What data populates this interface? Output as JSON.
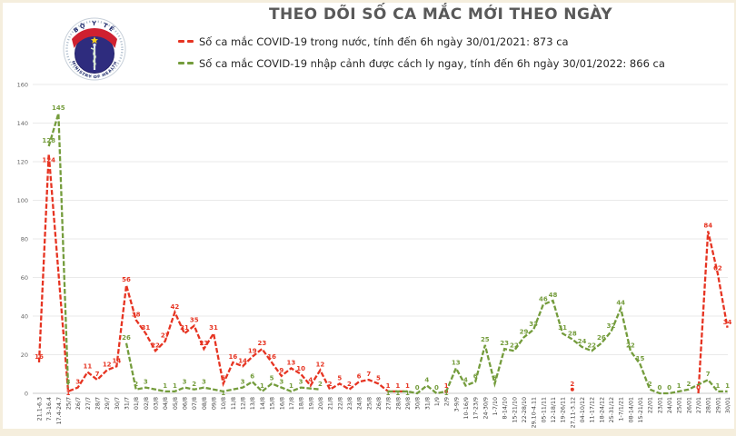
{
  "header": {
    "title": "THEO DÕI SỐ CA MẮC MỚI THEO NGÀY"
  },
  "logo": {
    "top_text": "BỘ Y TẾ",
    "bottom_text": "MINISTRY OF HEALTH",
    "emblem": "rod-of-asclepius",
    "colors": {
      "ring": "#97a9bd",
      "band": "#cf2030",
      "star": "#f7d01a",
      "disc": "#2e2c7e",
      "text": "#1f2a6b"
    }
  },
  "legend": {
    "items": [
      {
        "label": "Số ca mắc COVID-19 trong nước, tính đến 6h ngày 30/01/2021: 873 ca",
        "color": "#e63422"
      },
      {
        "label": "Số ca mắc COVID-19 nhập cảnh được cách ly ngay, tính đến 6h ngày 30/01/2022: 866 ca",
        "color": "#749c3c"
      }
    ]
  },
  "chart_data": {
    "type": "line",
    "title": "THEO DÕI SỐ CA MẮC MỚI THEO NGÀY",
    "xlabel": "",
    "ylabel": "",
    "ylim": [
      0,
      160
    ],
    "yticks": [
      0,
      20,
      40,
      60,
      80,
      100,
      120,
      140,
      160
    ],
    "grid": true,
    "legend_position": "top",
    "line_style": "dashed",
    "categories": [
      "21.1-6.3",
      "7.3-16.4",
      "17.4-24.7",
      "25/7",
      "26/7",
      "27/7",
      "28/7",
      "29/7",
      "30/7",
      "31/7",
      "01/8",
      "02/8",
      "03/8",
      "04/8",
      "05/8",
      "06/8",
      "07/8",
      "08/8",
      "09/8",
      "10/8",
      "11/8",
      "12/8",
      "13/8",
      "14/8",
      "15/8",
      "16/8",
      "17/8",
      "18/8",
      "19/8",
      "20/8",
      "21/8",
      "22/8",
      "23/8",
      "24/8",
      "25/8",
      "26/8",
      "27/8",
      "28/8",
      "29/8",
      "30/8",
      "31/8",
      "1/9",
      "2/9",
      "3-9/9",
      "10-16/9",
      "17-23/9",
      "24-30/9",
      "1-7/10",
      "8-14/10",
      "15-21/10",
      "22-28/10",
      "29.10-4.11",
      "05-11/11",
      "12-18/11",
      "19-26/11",
      "27.11-3.12",
      "04-10/12",
      "11-17/12",
      "18-24/12",
      "25-31/12",
      "1-7/1/21",
      "08-14/01",
      "15-21/01",
      "22/01",
      "23/01",
      "24/01",
      "25/01",
      "26/01",
      "27/01",
      "28/01",
      "29/01",
      "30/01"
    ],
    "series": [
      {
        "name": "Số ca mắc COVID-19 trong nước",
        "color": "#e63422",
        "values": [
          16,
          124,
          null,
          1,
          3,
          11,
          7,
          12,
          14,
          56,
          38,
          31,
          22,
          27,
          42,
          31,
          35,
          23,
          31,
          5,
          16,
          14,
          19,
          23,
          16,
          9,
          13,
          10,
          4,
          12,
          2,
          5,
          2,
          6,
          7,
          5,
          1,
          1,
          1,
          null,
          null,
          null,
          1,
          null,
          null,
          null,
          null,
          null,
          null,
          null,
          null,
          null,
          null,
          null,
          null,
          2,
          null,
          null,
          null,
          null,
          null,
          null,
          null,
          null,
          null,
          null,
          null,
          null,
          0,
          84,
          62,
          34
        ]
      },
      {
        "name": "Số ca mắc COVID-19 nhập cảnh được cách ly ngay",
        "color": "#749c3c",
        "values": [
          null,
          128,
          145,
          3,
          null,
          null,
          null,
          null,
          null,
          26,
          2,
          3,
          null,
          1,
          1,
          3,
          2,
          3,
          null,
          1,
          null,
          3,
          6,
          1,
          5,
          3,
          1,
          3,
          null,
          2,
          null,
          null,
          null,
          null,
          null,
          null,
          1,
          1,
          1,
          0,
          4,
          0,
          1,
          13,
          4,
          6,
          25,
          5,
          23,
          22,
          29,
          33,
          46,
          48,
          31,
          28,
          24,
          22,
          26,
          32,
          44,
          22,
          15,
          2,
          0,
          0,
          1,
          2,
          null,
          7,
          1,
          1
        ]
      }
    ]
  }
}
